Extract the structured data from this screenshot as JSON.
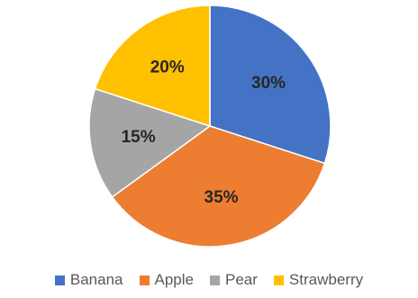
{
  "chart_data": {
    "type": "pie",
    "categories": [
      "Banana",
      "Apple",
      "Pear",
      "Strawberry"
    ],
    "values": [
      30,
      35,
      15,
      20
    ],
    "labels": [
      "30%",
      "35%",
      "15%",
      "20%"
    ],
    "colors": [
      "#4472C4",
      "#ED7D31",
      "#A5A5A5",
      "#FFC000"
    ],
    "start_angle_deg": 0,
    "direction": "clockwise",
    "legend_position": "bottom"
  }
}
